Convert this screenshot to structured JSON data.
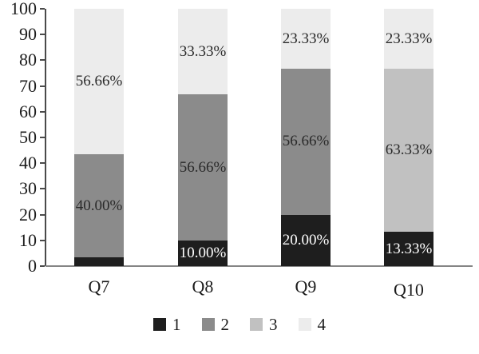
{
  "figure": {
    "background": "#ffffff",
    "axis_color": "#4a4a4a",
    "baseline_color": "#858585",
    "text_color": "#1c1c1c"
  },
  "chart_data": {
    "type": "bar",
    "stacked": true,
    "orientation": "vertical",
    "title": "",
    "xlabel": "",
    "ylabel": "",
    "grid": false,
    "categories": [
      "Q7",
      "Q8",
      "Q9",
      "Q10"
    ],
    "series": [
      {
        "name": "1",
        "color": "#1e1e1e",
        "label_color": "#ffffff",
        "values": [
          3.33,
          10.0,
          20.0,
          13.33
        ],
        "labels": [
          "3.33%",
          "10.00%",
          "20.00%",
          "13.33%"
        ]
      },
      {
        "name": "2",
        "color": "#8b8b8b",
        "label_color": "#2a2a2a",
        "values": [
          40.0,
          56.66,
          56.66,
          0
        ],
        "labels": [
          "40.00%",
          "56.66%",
          "56.66%",
          ""
        ]
      },
      {
        "name": "3",
        "color": "#c1c1c1",
        "label_color": "#2a2a2a",
        "values": [
          0,
          0,
          0,
          63.33
        ],
        "labels": [
          "",
          "",
          "",
          "63.33%"
        ]
      },
      {
        "name": "4",
        "color": "#ececec",
        "label_color": "#2a2a2a",
        "values": [
          56.66,
          33.33,
          23.33,
          23.33
        ],
        "labels": [
          "56.66%",
          "33.33%",
          "23.33%",
          "23.33%"
        ]
      }
    ],
    "y_axis": {
      "min": 0,
      "max": 100,
      "step": 10,
      "tick_labels": [
        "0",
        "10",
        "20",
        "30",
        "40",
        "50",
        "60",
        "70",
        "80",
        "90",
        "100"
      ]
    },
    "legend": {
      "position": "bottom-center",
      "entries": [
        "1",
        "2",
        "3",
        "4"
      ]
    }
  }
}
